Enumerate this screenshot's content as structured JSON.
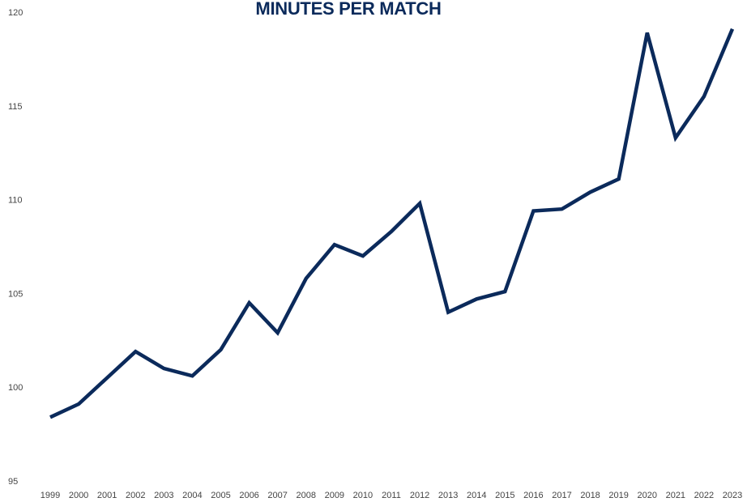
{
  "chart_data": {
    "type": "line",
    "title": "MINUTES PER MATCH",
    "xlabel": "",
    "ylabel": "",
    "x": [
      "1999",
      "2000",
      "2001",
      "2002",
      "2003",
      "2004",
      "2005",
      "2006",
      "2007",
      "2008",
      "2009",
      "2010",
      "2011",
      "2012",
      "2013",
      "2014",
      "2015",
      "2016",
      "2017",
      "2018",
      "2019",
      "2020",
      "2021",
      "2022",
      "2023"
    ],
    "series": [
      {
        "values": [
          98.4,
          99.1,
          100.5,
          101.9,
          101.0,
          100.6,
          102.0,
          104.5,
          102.9,
          105.8,
          107.6,
          107.0,
          108.3,
          109.8,
          104.0,
          104.7,
          105.1,
          109.4,
          109.5,
          110.4,
          111.1,
          118.9,
          113.3,
          115.5,
          119.1
        ]
      }
    ],
    "ylim": [
      95,
      120
    ],
    "yticks": [
      "95",
      "100",
      "105",
      "110",
      "115",
      "120"
    ],
    "ytick_values": [
      95,
      100,
      105,
      110,
      115,
      120
    ],
    "grid": false,
    "legend": "none",
    "line_color": "#0b2a5b"
  }
}
